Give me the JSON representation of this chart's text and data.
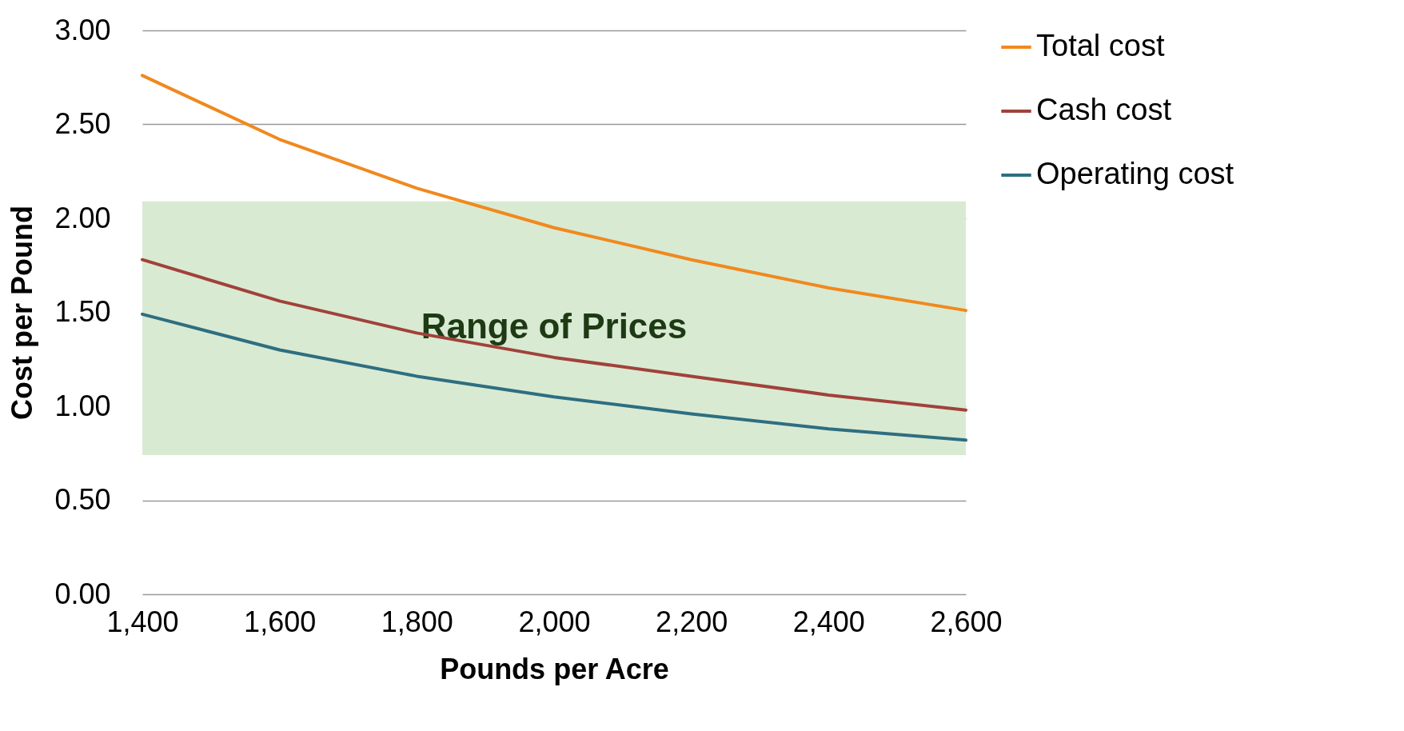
{
  "chart_data": {
    "type": "line",
    "xlabel": "Pounds per Acre",
    "ylabel": "Cost per  Pound",
    "x": [
      1400,
      1600,
      1800,
      2000,
      2200,
      2400,
      2600
    ],
    "series": [
      {
        "name": "Total cost",
        "color": "#f0891e",
        "values": [
          2.76,
          2.42,
          2.16,
          1.95,
          1.78,
          1.63,
          1.51
        ]
      },
      {
        "name": "Cash cost",
        "color": "#a0423a",
        "values": [
          1.78,
          1.56,
          1.39,
          1.26,
          1.16,
          1.06,
          0.98
        ]
      },
      {
        "name": "Operating  cost",
        "color": "#2e6e80",
        "values": [
          1.49,
          1.3,
          1.16,
          1.05,
          0.96,
          0.88,
          0.82
        ]
      }
    ],
    "xlim": [
      1400,
      2600
    ],
    "xticks": [
      {
        "value": 1400,
        "label": "1,400"
      },
      {
        "value": 1600,
        "label": "1,600"
      },
      {
        "value": 1800,
        "label": "1,800"
      },
      {
        "value": 2000,
        "label": "2,000"
      },
      {
        "value": 2200,
        "label": "2,200"
      },
      {
        "value": 2400,
        "label": "2,400"
      },
      {
        "value": 2600,
        "label": "2,600"
      }
    ],
    "ylim": [
      0,
      3
    ],
    "yticks": [
      {
        "value": 0,
        "label": "0.00"
      },
      {
        "value": 0.5,
        "label": "0.50"
      },
      {
        "value": 1,
        "label": "1.00"
      },
      {
        "value": 1.5,
        "label": "1.50"
      },
      {
        "value": 2,
        "label": "2.00"
      },
      {
        "value": 2.5,
        "label": "2.50"
      },
      {
        "value": 3,
        "label": "3.00"
      }
    ],
    "bands": [
      {
        "axis": "y",
        "from": 0.74,
        "to": 2.09,
        "label": "Range of Prices",
        "color": "#d9ead3"
      }
    ],
    "grid": "y",
    "legend": "top right",
    "marker": "none",
    "line_style": "solid"
  }
}
